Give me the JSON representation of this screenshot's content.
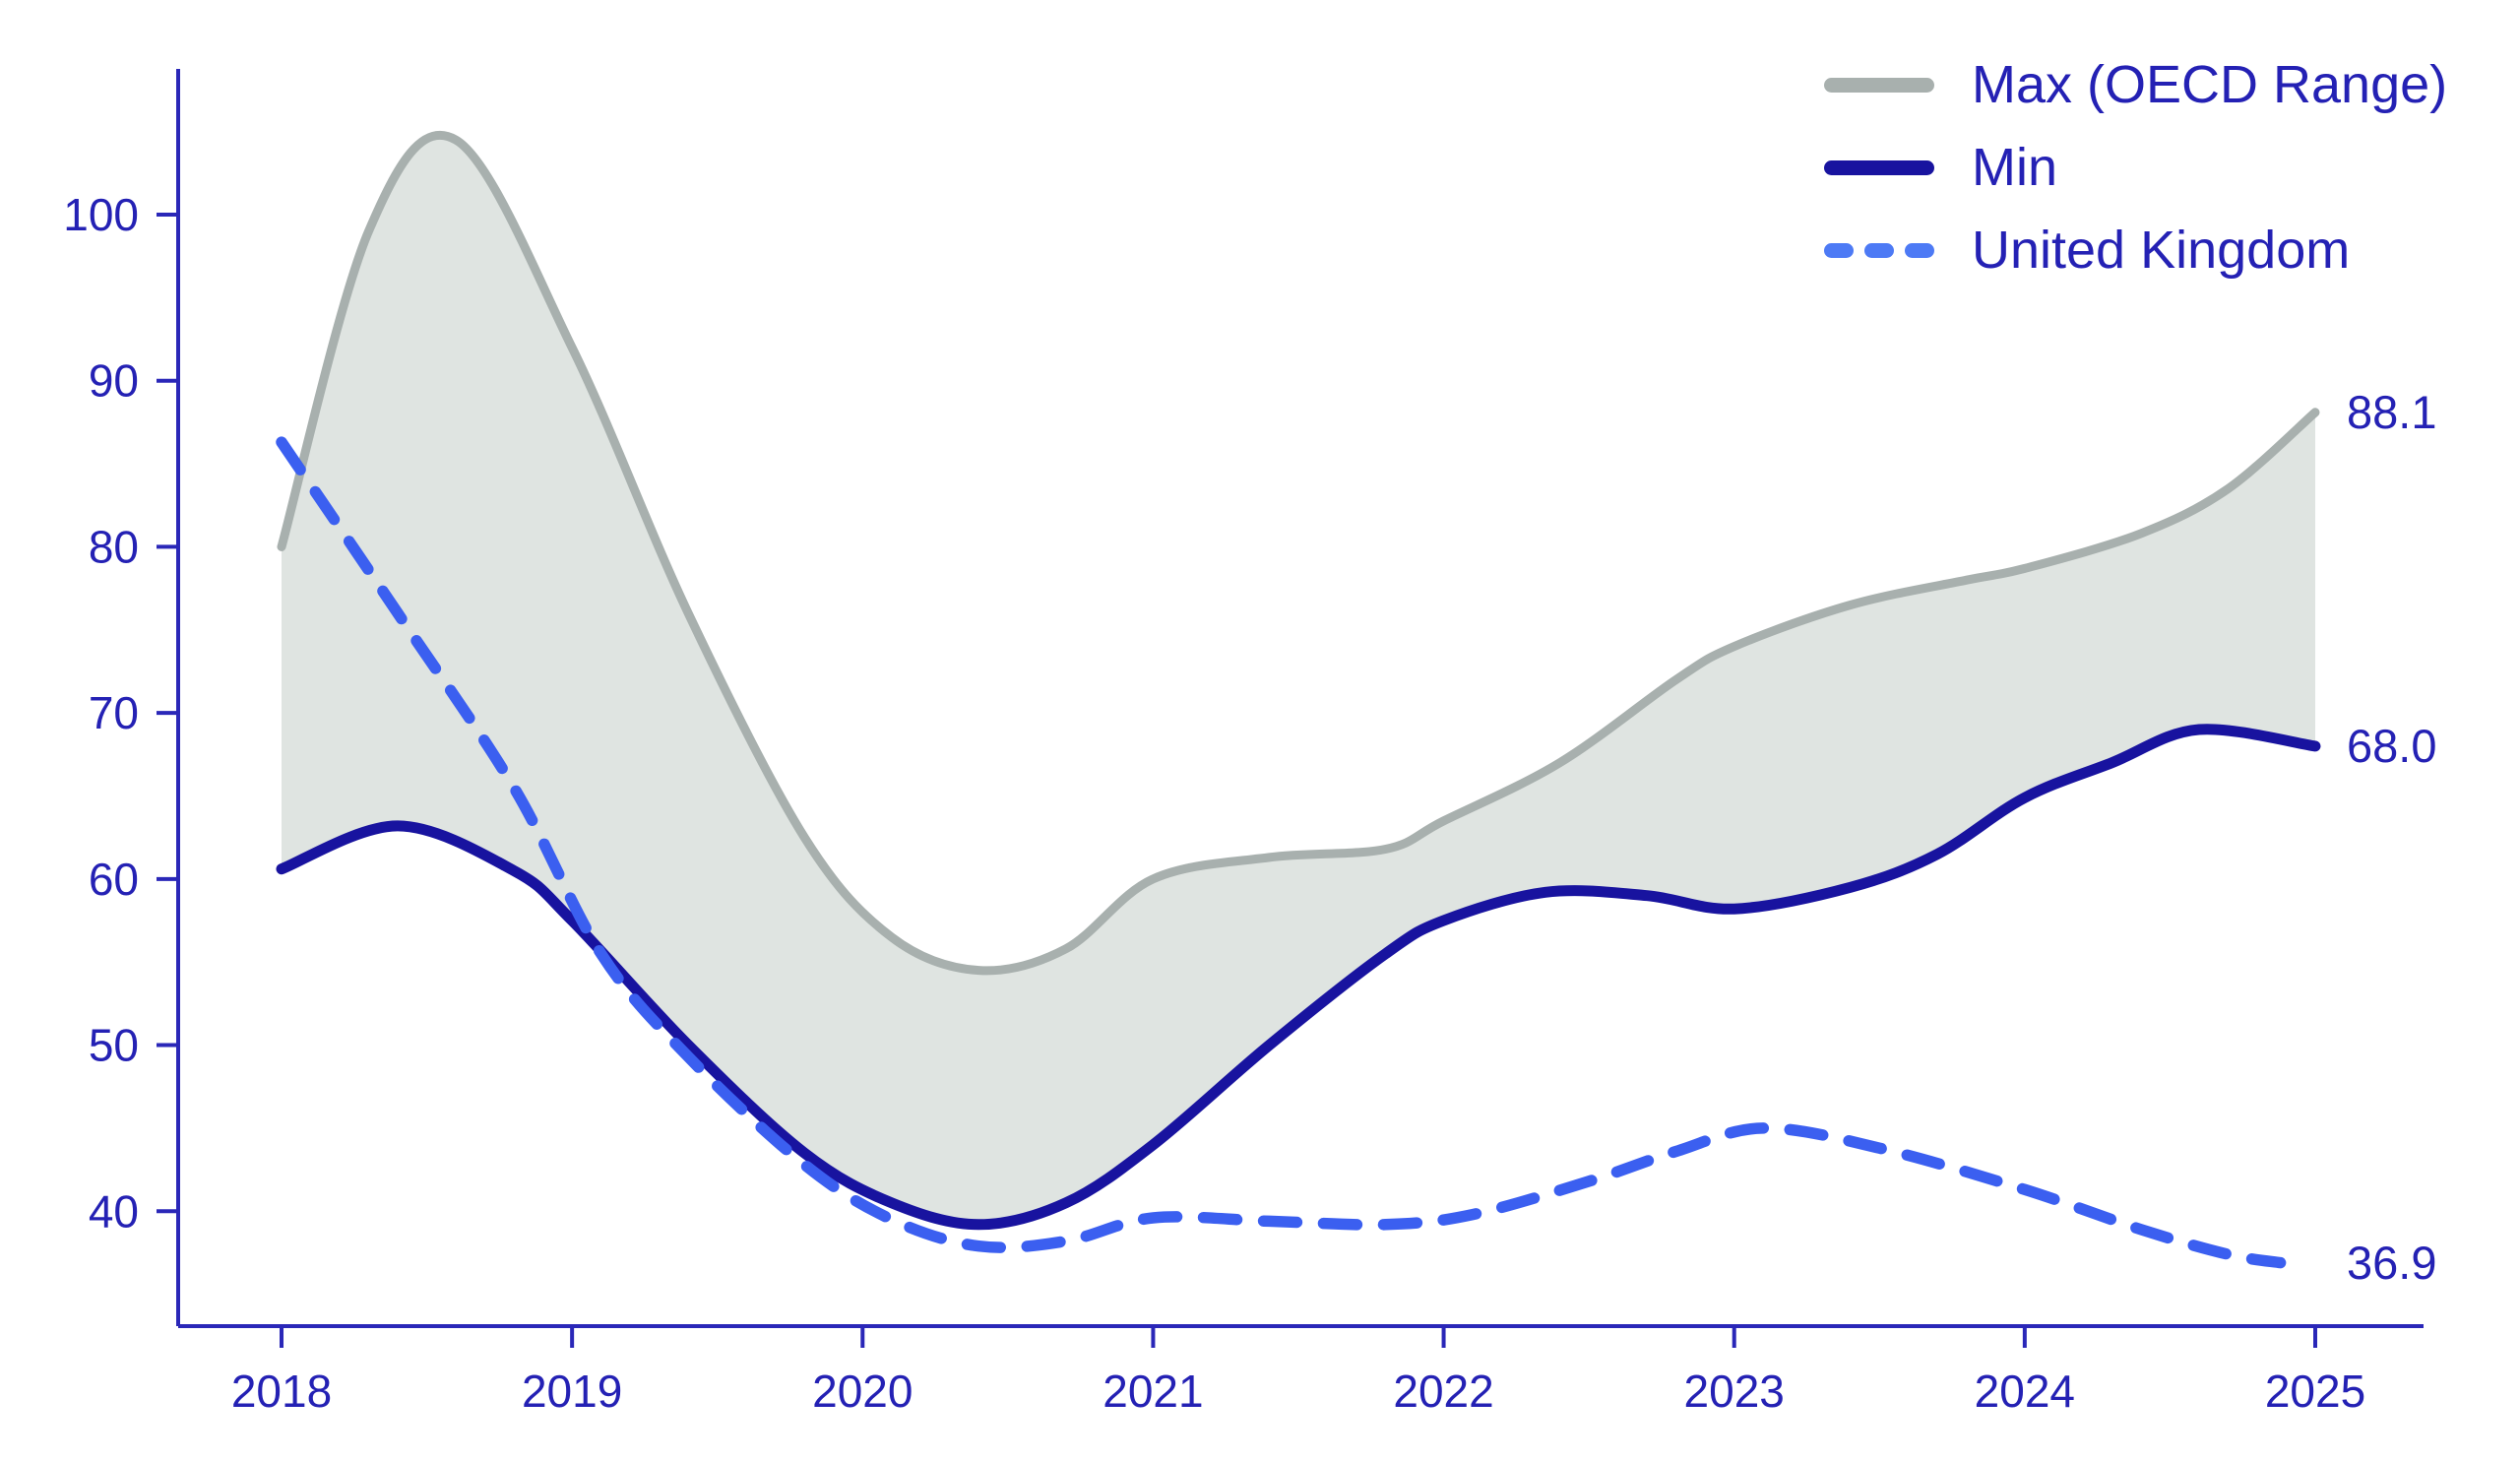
{
  "chart_data": {
    "type": "line",
    "x_axis": {
      "ticks": [
        "2018",
        "2019",
        "2020",
        "2021",
        "2022",
        "2023",
        "2024",
        "2025"
      ]
    },
    "y_axis": {
      "ticks": [
        "40",
        "50",
        "60",
        "70",
        "80",
        "90",
        "100"
      ]
    },
    "colors": {
      "text": "#2421b4",
      "axis": "#2a27b8",
      "band_fill": "#dfe4e1",
      "max_line": "#a8b0ae",
      "min_line": "#18139f",
      "uk_line": "#3b5ff0",
      "uk_legend_swatch": "#4d7af5"
    },
    "legend": [
      {
        "label": "Max (OECD Range)",
        "style": "solid",
        "color": "#a8b0ae"
      },
      {
        "label": "Min",
        "style": "solid",
        "color": "#18139f"
      },
      {
        "label": "United Kingdom",
        "style": "dashed",
        "color": "#4d7af5"
      }
    ],
    "series": [
      {
        "name": "Max (OECD Range)",
        "style": "solid",
        "color": "#a8b0ae",
        "end_label": "88.1",
        "points": [
          [
            2018.0,
            80.0
          ],
          [
            2018.3,
            99.0
          ],
          [
            2018.6,
            104.5
          ],
          [
            2019.0,
            92.0
          ],
          [
            2019.4,
            76.0
          ],
          [
            2019.8,
            62.5
          ],
          [
            2020.1,
            56.5
          ],
          [
            2020.4,
            54.5
          ],
          [
            2020.7,
            55.8
          ],
          [
            2021.0,
            60.0
          ],
          [
            2021.4,
            61.3
          ],
          [
            2021.8,
            61.8
          ],
          [
            2022.0,
            63.5
          ],
          [
            2022.4,
            67.0
          ],
          [
            2022.8,
            72.0
          ],
          [
            2023.0,
            74.0
          ],
          [
            2023.4,
            76.5
          ],
          [
            2023.8,
            78.0
          ],
          [
            2024.0,
            78.7
          ],
          [
            2024.4,
            80.8
          ],
          [
            2024.7,
            83.5
          ],
          [
            2025.0,
            88.1
          ]
        ]
      },
      {
        "name": "Min",
        "style": "solid",
        "color": "#18139f",
        "end_label": "68.0",
        "points": [
          [
            2018.0,
            60.6
          ],
          [
            2018.4,
            63.2
          ],
          [
            2018.8,
            60.5
          ],
          [
            2019.0,
            57.5
          ],
          [
            2019.4,
            50.0
          ],
          [
            2019.8,
            43.5
          ],
          [
            2020.1,
            40.5
          ],
          [
            2020.4,
            39.2
          ],
          [
            2020.7,
            40.5
          ],
          [
            2021.0,
            44.0
          ],
          [
            2021.4,
            50.0
          ],
          [
            2021.8,
            55.5
          ],
          [
            2022.0,
            57.5
          ],
          [
            2022.35,
            59.2
          ],
          [
            2022.7,
            59.0
          ],
          [
            2023.0,
            58.2
          ],
          [
            2023.4,
            59.5
          ],
          [
            2023.7,
            61.5
          ],
          [
            2024.0,
            64.9
          ],
          [
            2024.3,
            67.0
          ],
          [
            2024.6,
            69.0
          ],
          [
            2025.0,
            68.0
          ]
        ]
      },
      {
        "name": "United Kingdom",
        "style": "dashed",
        "color": "#3b5ff0",
        "end_label": "36.9",
        "points": [
          [
            2018.0,
            86.3
          ],
          [
            2018.4,
            76.0
          ],
          [
            2018.8,
            65.5
          ],
          [
            2019.1,
            55.5
          ],
          [
            2019.4,
            49.3
          ],
          [
            2019.8,
            42.8
          ],
          [
            2020.1,
            39.5
          ],
          [
            2020.4,
            37.9
          ],
          [
            2020.7,
            38.2
          ],
          [
            2021.0,
            39.6
          ],
          [
            2021.4,
            39.4
          ],
          [
            2021.8,
            39.2
          ],
          [
            2022.1,
            39.8
          ],
          [
            2022.5,
            41.8
          ],
          [
            2022.8,
            43.6
          ],
          [
            2023.1,
            45.0
          ],
          [
            2023.5,
            43.8
          ],
          [
            2024.0,
            41.3
          ],
          [
            2024.4,
            38.9
          ],
          [
            2024.7,
            37.4
          ],
          [
            2024.88,
            36.9
          ]
        ]
      }
    ]
  }
}
